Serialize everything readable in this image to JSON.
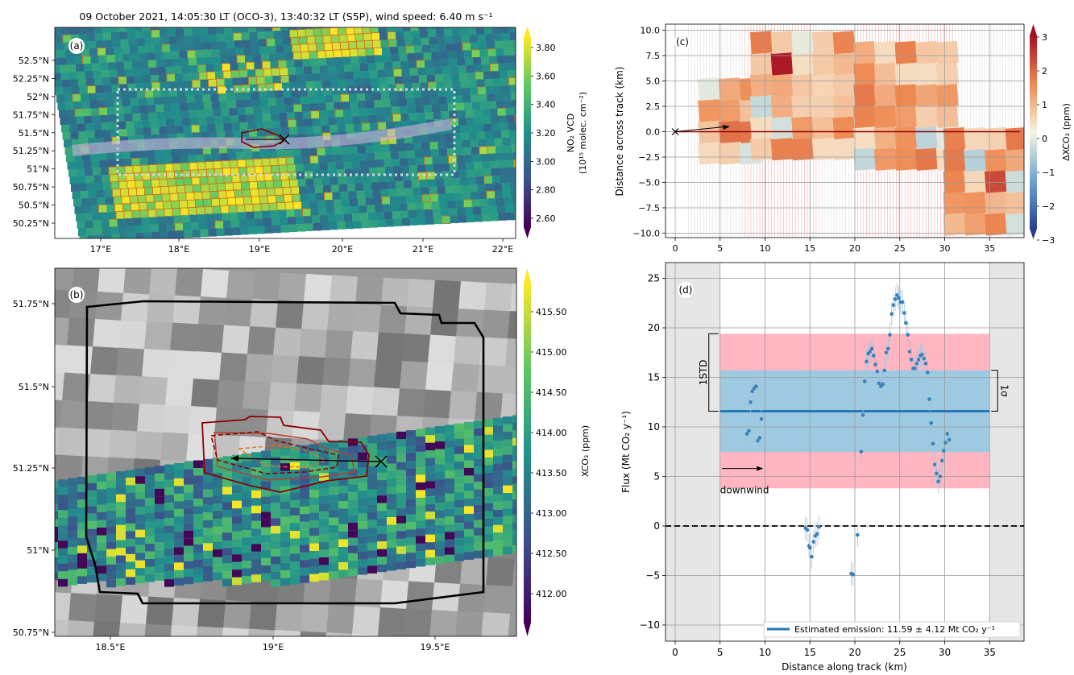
{
  "figure_title": "09 October 2021, 14:05:30 LT (OCO-3), 13:40:32 LT (S5P), wind speed: 6.40 m s⁻¹",
  "panels": {
    "a": {
      "tag": "(a)",
      "cbar_label": "NO₂ VCD",
      "cbar_sub": "(10¹⁵ molec. cm⁻²)"
    },
    "b": {
      "tag": "(b)",
      "cbar_label": "XCO₂ (ppm)"
    },
    "c": {
      "tag": "(c)",
      "cbar_label": "ΔXCO₂ (ppm)"
    },
    "d": {
      "tag": "(d)"
    }
  },
  "colors": {
    "viridis_bottom": "#440154",
    "viridis_mid": "#21918c",
    "viridis_top": "#fde725",
    "rdbu_low": "#2a3f8f",
    "rdbu_mid": "#f7f4e0",
    "rdbu_high": "#a50f25",
    "flux_points": "#3a80b8",
    "emission_line": "#2777b4",
    "band_sigma": "#9ecae1",
    "band_std": "#ffb6c1",
    "shade": "#e6e6e6",
    "outline": "#8b0000"
  },
  "chart_data": [
    {
      "id": "a",
      "type": "heatmap",
      "xticks": [
        "17°E",
        "18°E",
        "19°E",
        "20°E",
        "21°E",
        "22°E"
      ],
      "yticks": [
        "52.5°N",
        "52.25°N",
        "52°N",
        "51.75°N",
        "51.5°N",
        "51.25°N",
        "51°N",
        "50.75°N",
        "50.5°N",
        "50.25°N"
      ],
      "colorbar_ticks": [
        "3.80",
        "3.60",
        "3.40",
        "3.20",
        "3.00",
        "2.80",
        "2.60"
      ],
      "colorbar_range": [
        2.5,
        3.92
      ]
    },
    {
      "id": "b",
      "type": "heatmap",
      "xticks": [
        "18.5°E",
        "19°E",
        "19.5°E"
      ],
      "yticks": [
        "51.75°N",
        "51.5°N",
        "51.25°N",
        "51°N",
        "50.75°N"
      ],
      "colorbar_ticks": [
        "415.50",
        "415.00",
        "414.50",
        "414.00",
        "413.50",
        "413.00",
        "412.50",
        "412.00"
      ],
      "colorbar_range": [
        411.6,
        415.7
      ]
    },
    {
      "id": "c",
      "type": "heatmap",
      "ylabel": "Distance across track (km)",
      "xlim": [
        -1,
        39
      ],
      "ylim": [
        -11,
        11
      ],
      "xticks": [
        "0",
        "5",
        "10",
        "15",
        "20",
        "25",
        "30",
        "35"
      ],
      "yticks": [
        "10.0",
        "7.5",
        "5.0",
        "2.5",
        "0.0",
        "−2.5",
        "−5.0",
        "−7.5",
        "−10.0"
      ],
      "colorbar_ticks": [
        "3",
        "2",
        "1",
        "0",
        "−1",
        "−2",
        "−3"
      ],
      "colorbar_range": [
        -3,
        3
      ]
    },
    {
      "id": "d",
      "type": "scatter",
      "xlabel": "Distance along track (km)",
      "ylabel": "Flux (Mt CO₂ y⁻¹)",
      "xlim": [
        -1,
        39
      ],
      "ylim": [
        -12,
        26
      ],
      "xticks": [
        "0",
        "5",
        "10",
        "15",
        "20",
        "25",
        "30",
        "35"
      ],
      "yticks": [
        "25",
        "20",
        "15",
        "10",
        "5",
        "0",
        "−5",
        "−10"
      ],
      "emission": 11.59,
      "sigma": 4.12,
      "std_band": [
        3.8,
        19.4
      ],
      "legend_label": "Estimated emission: 11.59 ± 4.12 Mt CO₂ y⁻¹",
      "label_1std": "1STD",
      "label_sigma": "1σ",
      "label_downwind": "downwind",
      "points": [
        [
          8.0,
          9.3
        ],
        [
          8.2,
          9.6
        ],
        [
          8.4,
          12.5
        ],
        [
          8.6,
          13.6
        ],
        [
          8.8,
          13.9
        ],
        [
          9.0,
          14.1
        ],
        [
          9.2,
          8.6
        ],
        [
          9.4,
          8.9
        ],
        [
          9.6,
          10.8
        ],
        [
          14.5,
          -0.2
        ],
        [
          14.7,
          -0.4
        ],
        [
          14.9,
          -2.0
        ],
        [
          15.0,
          -2.2
        ],
        [
          15.2,
          -3.1
        ],
        [
          15.4,
          -1.6
        ],
        [
          15.6,
          -1.0
        ],
        [
          15.8,
          -0.8
        ],
        [
          16.0,
          -0.1
        ],
        [
          19.6,
          -4.8
        ],
        [
          19.8,
          -4.9
        ],
        [
          20.3,
          -0.9
        ],
        [
          20.7,
          7.5
        ],
        [
          20.9,
          11.2
        ],
        [
          21.1,
          14.6
        ],
        [
          21.3,
          16.6
        ],
        [
          21.5,
          17.4
        ],
        [
          21.7,
          17.6
        ],
        [
          21.9,
          17.9
        ],
        [
          22.1,
          17.2
        ],
        [
          22.3,
          16.3
        ],
        [
          22.5,
          15.6
        ],
        [
          22.7,
          14.4
        ],
        [
          22.9,
          14.1
        ],
        [
          23.1,
          14.3
        ],
        [
          23.3,
          15.7
        ],
        [
          23.5,
          17.5
        ],
        [
          23.7,
          17.9
        ],
        [
          23.9,
          19.3
        ],
        [
          24.1,
          21.4
        ],
        [
          24.3,
          22.3
        ],
        [
          24.5,
          22.9
        ],
        [
          24.7,
          23.3
        ],
        [
          24.9,
          23.0
        ],
        [
          25.1,
          22.6
        ],
        [
          25.3,
          22.6
        ],
        [
          25.5,
          21.5
        ],
        [
          25.7,
          20.5
        ],
        [
          25.9,
          19.3
        ],
        [
          26.1,
          17.6
        ],
        [
          26.3,
          16.8
        ],
        [
          26.5,
          15.9
        ],
        [
          26.7,
          15.9
        ],
        [
          26.9,
          16.4
        ],
        [
          27.1,
          16.8
        ],
        [
          27.3,
          17.2
        ],
        [
          27.5,
          17.3
        ],
        [
          27.7,
          16.9
        ],
        [
          27.9,
          16.4
        ],
        [
          28.1,
          15.5
        ],
        [
          28.3,
          12.8
        ],
        [
          28.5,
          10.4
        ],
        [
          28.7,
          8.3
        ],
        [
          28.9,
          6.2
        ],
        [
          29.1,
          5.3
        ],
        [
          29.3,
          4.5
        ],
        [
          29.5,
          5.0
        ],
        [
          29.7,
          6.6
        ],
        [
          29.9,
          7.6
        ],
        [
          30.1,
          8.4
        ],
        [
          30.3,
          9.3
        ],
        [
          30.5,
          8.7
        ]
      ]
    }
  ]
}
